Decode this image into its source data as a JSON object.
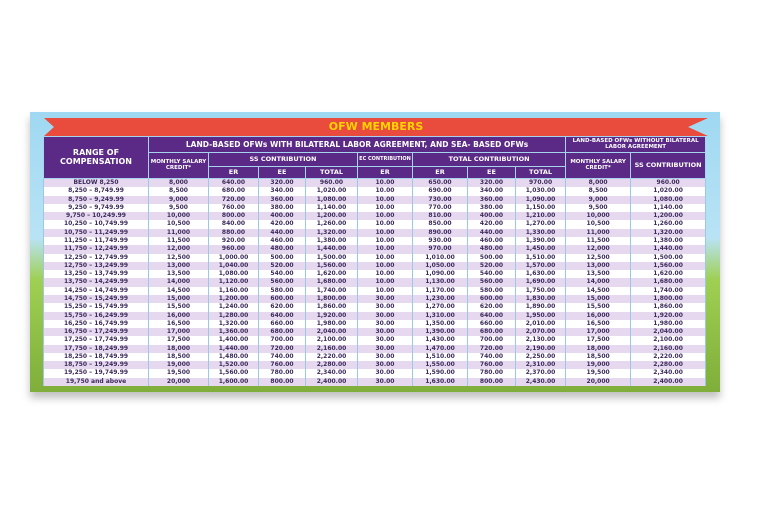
{
  "banner": "OFW MEMBERS",
  "headers": {
    "range": "RANGE OF COMPENSATION",
    "group1": "LAND-BASED OFWs WITH BILATERAL LABOR AGREEMENT, AND SEA- BASED OFWs",
    "group2": "LAND-BASED OFWs WITHOUT BILATERAL LABOR AGREEMENT",
    "msc": "MONTHLY SALARY CREDIT*",
    "ss": "SS CONTRIBUTION",
    "ec": "EC CONTRIBUTION",
    "total": "TOTAL CONTRIBUTION",
    "er": "ER",
    "ee": "EE",
    "tot": "TOTAL",
    "msc2": "MONTHLY SALARY CREDIT*",
    "ss2": "SS CONTRIBUTION"
  },
  "colors": {
    "header": "#5b2a86",
    "banner": "#e94b3c",
    "banner_text": "#ffd400",
    "row_alt": "#e6d8ef"
  },
  "rows": [
    [
      "BELOW 8,250",
      "8,000",
      "640.00",
      "320.00",
      "960.00",
      "10.00",
      "650.00",
      "320.00",
      "970.00",
      "8,000",
      "960.00"
    ],
    [
      "8,250 – 8,749.99",
      "8,500",
      "680.00",
      "340.00",
      "1,020.00",
      "10.00",
      "690.00",
      "340.00",
      "1,030.00",
      "8,500",
      "1,020.00"
    ],
    [
      "8,750 – 9,249.99",
      "9,000",
      "720.00",
      "360.00",
      "1,080.00",
      "10.00",
      "730.00",
      "360.00",
      "1,090.00",
      "9,000",
      "1,080.00"
    ],
    [
      "9,250 – 9,749.99",
      "9,500",
      "760.00",
      "380.00",
      "1,140.00",
      "10.00",
      "770.00",
      "380.00",
      "1,150.00",
      "9,500",
      "1,140.00"
    ],
    [
      "9,750 – 10,249.99",
      "10,000",
      "800.00",
      "400.00",
      "1,200.00",
      "10.00",
      "810.00",
      "400.00",
      "1,210.00",
      "10,000",
      "1,200.00"
    ],
    [
      "10,250 – 10,749.99",
      "10,500",
      "840.00",
      "420.00",
      "1,260.00",
      "10.00",
      "850.00",
      "420.00",
      "1,270.00",
      "10,500",
      "1,260.00"
    ],
    [
      "10,750 – 11,249.99",
      "11,000",
      "880.00",
      "440.00",
      "1,320.00",
      "10.00",
      "890.00",
      "440.00",
      "1,330.00",
      "11,000",
      "1,320.00"
    ],
    [
      "11,250 – 11,749.99",
      "11,500",
      "920.00",
      "460.00",
      "1,380.00",
      "10.00",
      "930.00",
      "460.00",
      "1,390.00",
      "11,500",
      "1,380.00"
    ],
    [
      "11,750 – 12,249.99",
      "12,000",
      "960.00",
      "480.00",
      "1,440.00",
      "10.00",
      "970.00",
      "480.00",
      "1,450.00",
      "12,000",
      "1,440.00"
    ],
    [
      "12,250 – 12,749.99",
      "12,500",
      "1,000.00",
      "500.00",
      "1,500.00",
      "10.00",
      "1,010.00",
      "500.00",
      "1,510.00",
      "12,500",
      "1,500.00"
    ],
    [
      "12,750 – 13,249.99",
      "13,000",
      "1,040.00",
      "520.00",
      "1,560.00",
      "10.00",
      "1,050.00",
      "520.00",
      "1,570.00",
      "13,000",
      "1,560.00"
    ],
    [
      "13,250 – 13,749.99",
      "13,500",
      "1,080.00",
      "540.00",
      "1,620.00",
      "10.00",
      "1,090.00",
      "540.00",
      "1,630.00",
      "13,500",
      "1,620.00"
    ],
    [
      "13,750 – 14,249.99",
      "14,000",
      "1,120.00",
      "560.00",
      "1,680.00",
      "10.00",
      "1,130.00",
      "560.00",
      "1,690.00",
      "14,000",
      "1,680.00"
    ],
    [
      "14,250 – 14,749.99",
      "14,500",
      "1,160.00",
      "580.00",
      "1,740.00",
      "10.00",
      "1,170.00",
      "580.00",
      "1,750.00",
      "14,500",
      "1,740.00"
    ],
    [
      "14,750 – 15,249.99",
      "15,000",
      "1,200.00",
      "600.00",
      "1,800.00",
      "30.00",
      "1,230.00",
      "600.00",
      "1,830.00",
      "15,000",
      "1,800.00"
    ],
    [
      "15,250 – 15,749.99",
      "15,500",
      "1,240.00",
      "620.00",
      "1,860.00",
      "30.00",
      "1,270.00",
      "620.00",
      "1,890.00",
      "15,500",
      "1,860.00"
    ],
    [
      "15,750 – 16,249.99",
      "16,000",
      "1,280.00",
      "640.00",
      "1,920.00",
      "30.00",
      "1,310.00",
      "640.00",
      "1,950.00",
      "16,000",
      "1,920.00"
    ],
    [
      "16,250 – 16,749.99",
      "16,500",
      "1,320.00",
      "660.00",
      "1,980.00",
      "30.00",
      "1,350.00",
      "660.00",
      "2,010.00",
      "16,500",
      "1,980.00"
    ],
    [
      "16,750 – 17,249.99",
      "17,000",
      "1,360.00",
      "680.00",
      "2,040.00",
      "30.00",
      "1,390.00",
      "680.00",
      "2,070.00",
      "17,000",
      "2,040.00"
    ],
    [
      "17,250 – 17,749.99",
      "17,500",
      "1,400.00",
      "700.00",
      "2,100.00",
      "30.00",
      "1,430.00",
      "700.00",
      "2,130.00",
      "17,500",
      "2,100.00"
    ],
    [
      "17,750 – 18,249.99",
      "18,000",
      "1,440.00",
      "720.00",
      "2,160.00",
      "30.00",
      "1,470.00",
      "720.00",
      "2,190.00",
      "18,000",
      "2,160.00"
    ],
    [
      "18,250 – 18,749.99",
      "18,500",
      "1,480.00",
      "740.00",
      "2,220.00",
      "30.00",
      "1,510.00",
      "740.00",
      "2,250.00",
      "18,500",
      "2,220.00"
    ],
    [
      "18,750 – 19,249.99",
      "19,000",
      "1,520.00",
      "760.00",
      "2,280.00",
      "30.00",
      "1,550.00",
      "760.00",
      "2,310.00",
      "19,000",
      "2,280.00"
    ],
    [
      "19,250 – 19,749.99",
      "19,500",
      "1,560.00",
      "780.00",
      "2,340.00",
      "30.00",
      "1,590.00",
      "780.00",
      "2,370.00",
      "19,500",
      "2,340.00"
    ],
    [
      "19,750 and above",
      "20,000",
      "1,600.00",
      "800.00",
      "2,400.00",
      "30.00",
      "1,630.00",
      "800.00",
      "2,430.00",
      "20,000",
      "2,400.00"
    ]
  ]
}
